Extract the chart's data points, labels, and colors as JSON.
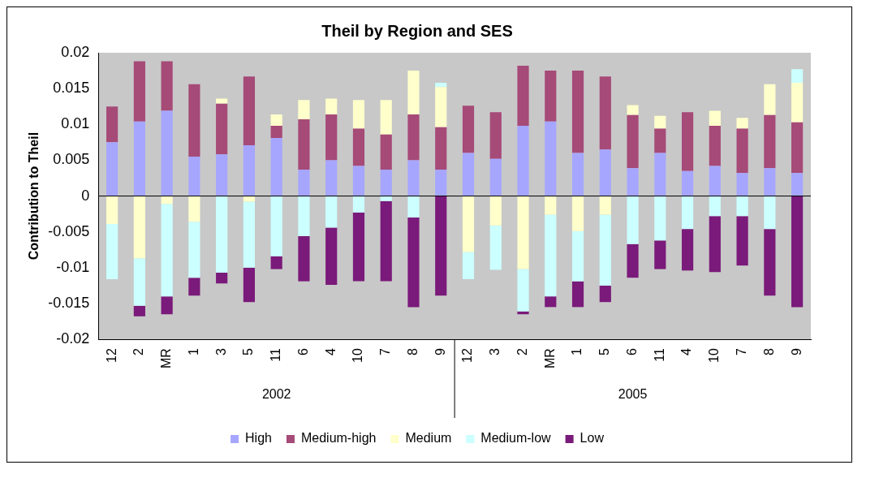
{
  "chart_data": {
    "type": "bar",
    "stacked": true,
    "title": "Theil by Region and SES",
    "ylabel": "Contribution to Theil",
    "categories": [
      "12",
      "2",
      "MR",
      "1",
      "3",
      "5",
      "11",
      "6",
      "4",
      "10",
      "7",
      "8",
      "9",
      "12",
      "3",
      "2",
      "MR",
      "1",
      "5",
      "6",
      "11",
      "4",
      "10",
      "7",
      "8",
      "9"
    ],
    "annotations": [
      "2002",
      "2005"
    ],
    "ylim": [
      -0.02,
      0.02
    ],
    "yticks": [
      -0.02,
      -0.015,
      -0.01,
      -0.005,
      0,
      0.005,
      0.01,
      0.015,
      0.02
    ],
    "grid": false,
    "legend": "bottom",
    "ref_lines": [
      {
        "axis": "y",
        "value": 0,
        "color": "#000000"
      }
    ],
    "series": [
      {
        "name": "High",
        "color": "#a6a6ff",
        "values": [
          0.0075,
          0.0104,
          0.0119,
          0.0055,
          0.0058,
          0.0071,
          0.0081,
          0.0037,
          0.005,
          0.0042,
          0.0037,
          0.005,
          0.0037,
          0.006,
          0.0052,
          0.0098,
          0.0104,
          0.006,
          0.0065,
          0.0039,
          0.006,
          0.0035,
          0.0042,
          0.0032,
          0.0039,
          0.0032
        ]
      },
      {
        "name": "Medium-high",
        "color": "#a64a78",
        "values": [
          0.005,
          0.0084,
          0.0069,
          0.0101,
          0.0071,
          0.0096,
          0.0017,
          0.007,
          0.0064,
          0.0052,
          0.0049,
          0.0064,
          0.0059,
          0.0066,
          0.0065,
          0.0084,
          0.0071,
          0.0115,
          0.0102,
          0.0074,
          0.0034,
          0.0082,
          0.0056,
          0.0062,
          0.0074,
          0.0071
        ]
      },
      {
        "name": "Medium",
        "color": "#ffffcc",
        "values": [
          -0.0039,
          -0.0087,
          -0.0011,
          -0.0036,
          0.0007,
          -0.0008,
          0.0016,
          0.0027,
          0.0022,
          0.004,
          0.0048,
          0.0061,
          0.0056,
          -0.0078,
          -0.0041,
          -0.0102,
          -0.0026,
          -0.0049,
          -0.0026,
          0.0014,
          0.0018,
          0,
          0.0021,
          0.0015,
          0.0043,
          0.0055
        ]
      },
      {
        "name": "Medium-low",
        "color": "#ccffff",
        "values": [
          -0.0077,
          -0.0066,
          -0.0129,
          -0.0078,
          -0.0107,
          -0.0092,
          -0.0084,
          -0.0056,
          -0.0044,
          -0.0023,
          -0.0007,
          -0.003,
          0.0006,
          -0.0038,
          -0.0062,
          -0.0059,
          -0.0114,
          -0.007,
          -0.0099,
          -0.0067,
          -0.0062,
          -0.0046,
          -0.0028,
          -0.0028,
          -0.0046,
          0.0019
        ]
      },
      {
        "name": "Low",
        "color": "#7a1a7a",
        "values": [
          0,
          -0.0015,
          -0.0025,
          -0.0025,
          -0.0015,
          -0.0048,
          -0.0018,
          -0.0063,
          -0.008,
          -0.0096,
          -0.0112,
          -0.0125,
          -0.0139,
          0,
          0,
          -0.0004,
          -0.0015,
          -0.0036,
          -0.0023,
          -0.0047,
          -0.004,
          -0.0058,
          -0.0078,
          -0.0069,
          -0.0093,
          -0.0155
        ]
      }
    ]
  }
}
